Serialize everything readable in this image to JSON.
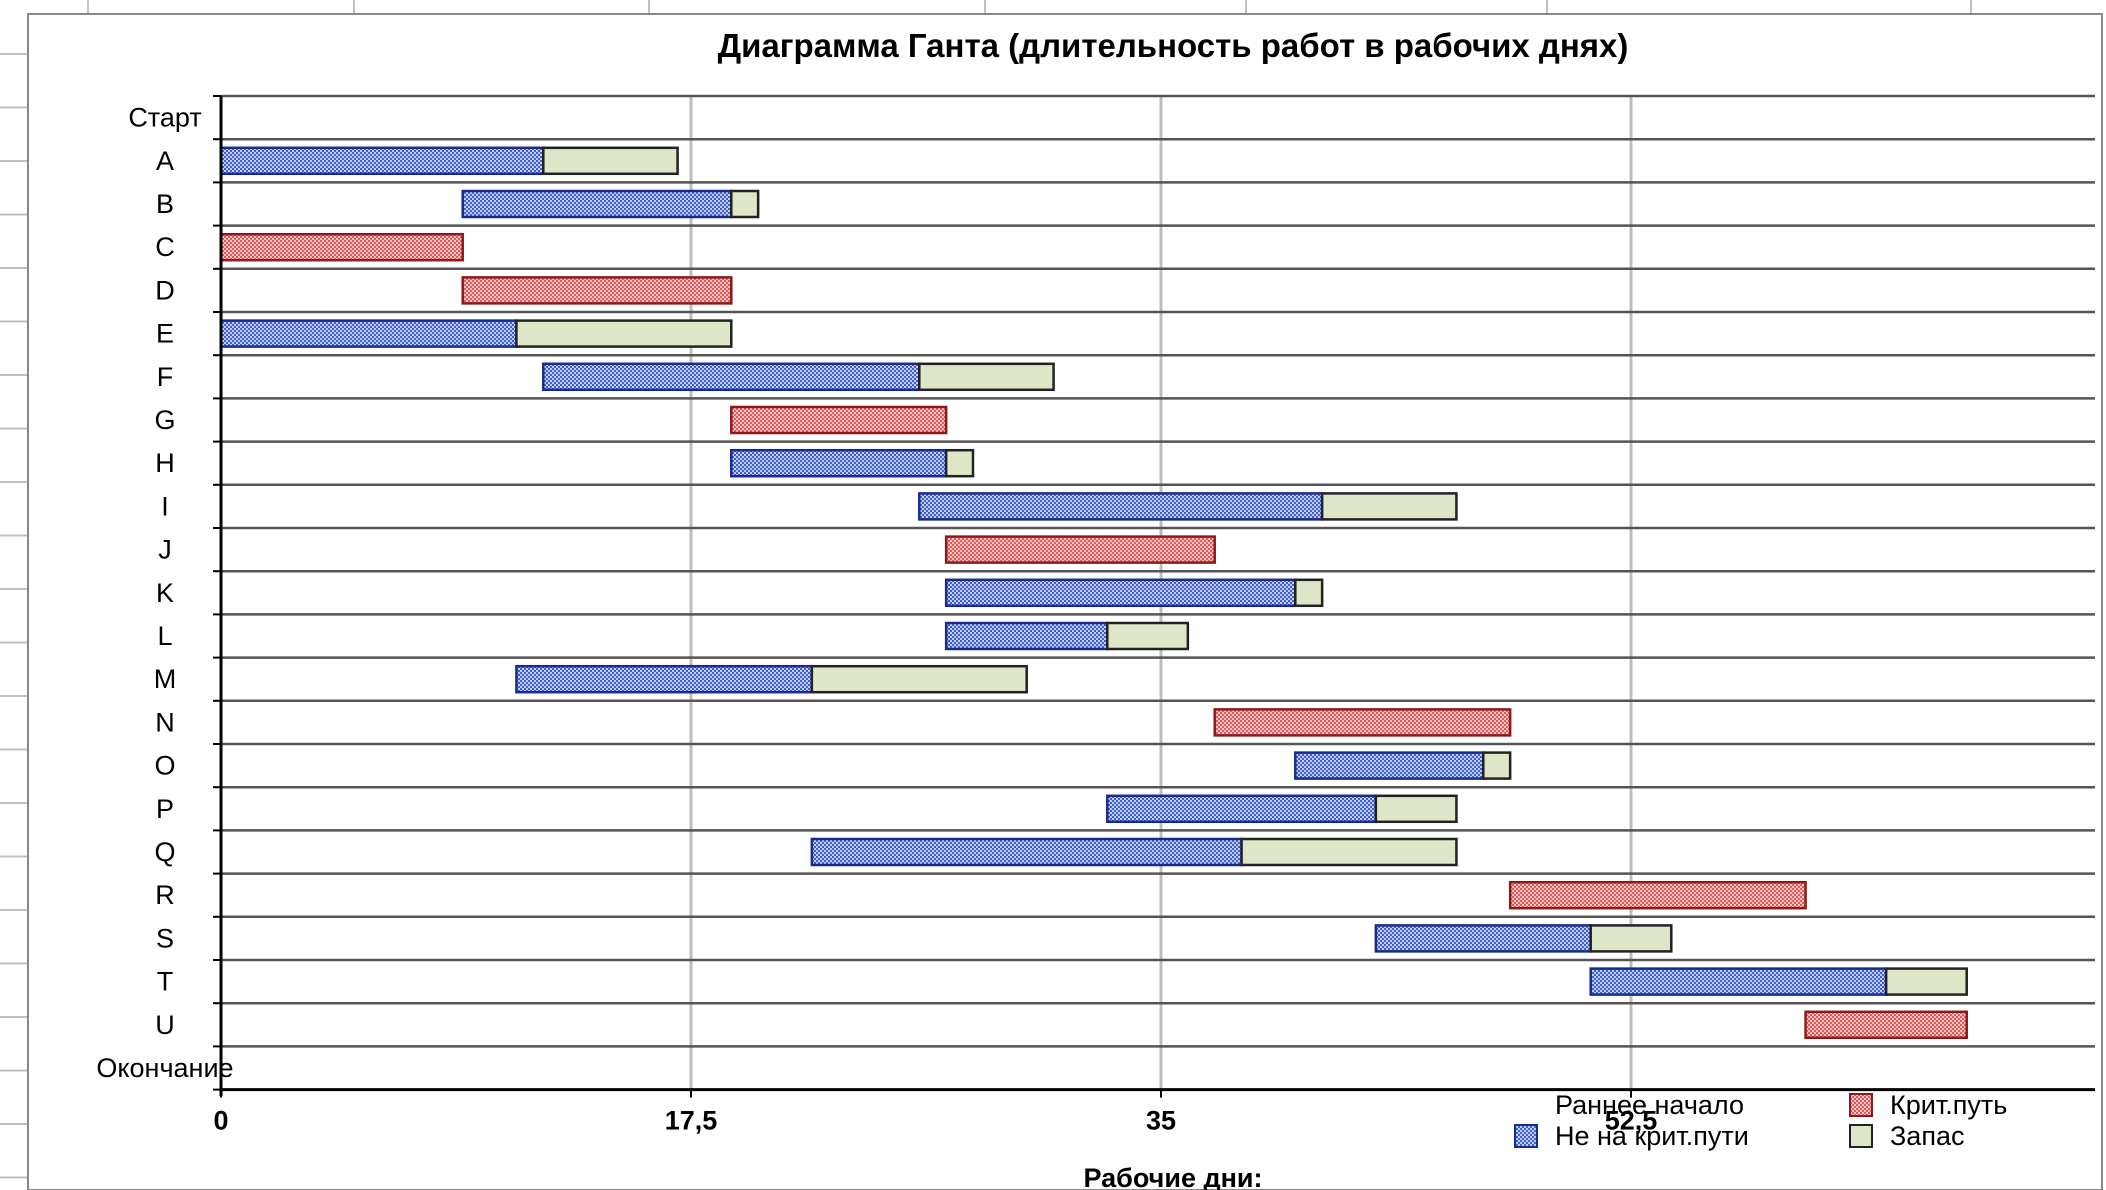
{
  "chart_data": {
    "type": "bar",
    "orientation": "horizontal",
    "stacked": true,
    "title": "Диаграмма Ганта (длительность работ в рабочих днях)",
    "xlabel": "Рабочие дни:",
    "xlim": [
      0,
      66
    ],
    "xticks": [
      0,
      17.5,
      35,
      52.5
    ],
    "xtick_labels": [
      "0",
      "17,5",
      "35",
      "52,5"
    ],
    "grid": true,
    "legend_position": "bottom-right",
    "categories": [
      "Старт",
      "A",
      "B",
      "C",
      "D",
      "E",
      "F",
      "G",
      "H",
      "I",
      "J",
      "K",
      "L",
      "M",
      "N",
      "O",
      "P",
      "Q",
      "R",
      "S",
      "T",
      "U",
      "Окончание"
    ],
    "series": [
      {
        "name": "Раннее начало",
        "color": "none",
        "values": [
          0,
          0,
          9,
          0,
          9,
          0,
          12,
          19,
          19,
          26,
          27,
          27,
          27,
          11,
          37,
          40,
          33,
          22,
          48,
          43,
          51,
          59,
          0
        ]
      },
      {
        "name": "Крит.путь",
        "color": "#f2a0a0",
        "edge": "#8b1a1a",
        "values": [
          0,
          0,
          0,
          9,
          10,
          0,
          0,
          8,
          0,
          0,
          10,
          0,
          0,
          0,
          11,
          0,
          0,
          0,
          11,
          0,
          0,
          6,
          0
        ]
      },
      {
        "name": "Не на крит.пути",
        "color": "#8ea6ec",
        "edge": "#1a2a8a",
        "values": [
          0,
          12,
          10,
          0,
          0,
          11,
          14,
          0,
          8,
          15,
          0,
          13,
          6,
          11,
          0,
          7,
          10,
          16,
          0,
          8,
          11,
          0,
          0
        ]
      },
      {
        "name": "Запас",
        "color": "#dde6c6",
        "edge": "#222222",
        "values": [
          0,
          5,
          1,
          0,
          0,
          8,
          5,
          0,
          1,
          5,
          0,
          1,
          3,
          8,
          0,
          1,
          3,
          8,
          0,
          3,
          3,
          0,
          0
        ]
      }
    ]
  }
}
